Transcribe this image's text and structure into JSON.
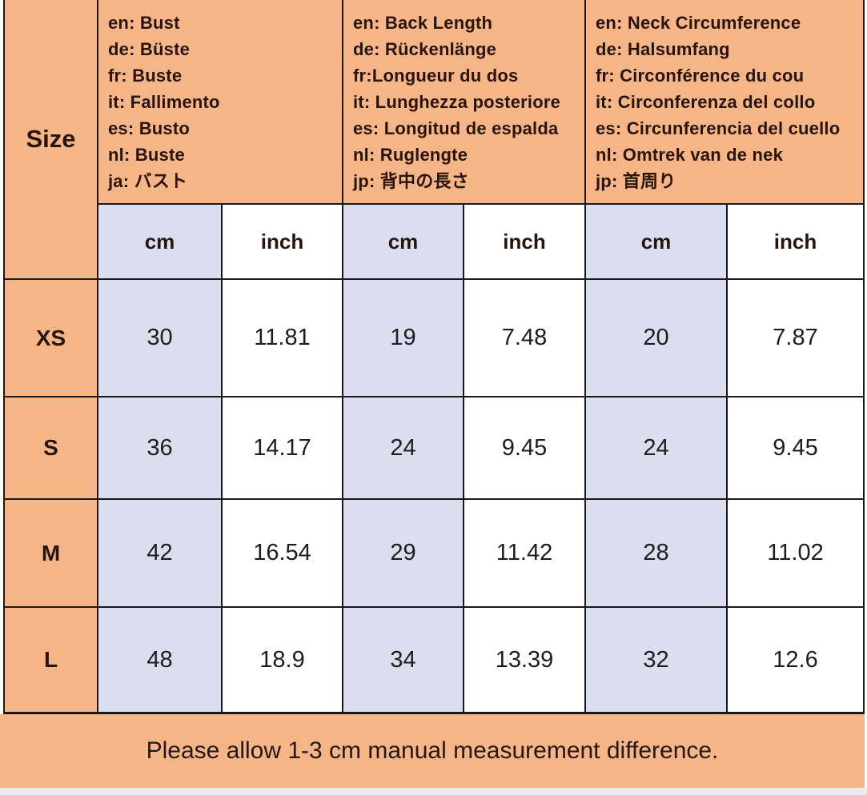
{
  "colors": {
    "orange": "#f6b587",
    "lavender": "#dadeef",
    "border": "#191919",
    "text-dark": "#27150d",
    "text-num": "#1d1d1d"
  },
  "chart_data": {
    "type": "table",
    "corner_header": "Size",
    "column_groups": [
      {
        "name": "Bust",
        "labels": [
          "en: Bust",
          "de: Büste",
          "fr: Buste",
          "it: Fallimento",
          "es: Busto",
          "nl: Buste",
          "ja: バスト"
        ]
      },
      {
        "name": "Back Length",
        "labels": [
          "en: Back Length",
          "de: Rückenlänge",
          "fr:Longueur du dos",
          "it: Lunghezza posteriore",
          "es: Longitud de espalda",
          "nl: Ruglengte",
          "jp: 背中の長さ"
        ]
      },
      {
        "name": "Neck Circumference",
        "labels": [
          "en: Neck Circumference",
          "de: Halsumfang",
          "fr: Circonférence du cou",
          "it: Circonferenza del collo",
          "es: Circunferencia del cuello",
          "nl: Omtrek van de nek",
          "jp: 首周り"
        ]
      }
    ],
    "unit_headers": [
      "cm",
      "inch",
      "cm",
      "inch",
      "cm",
      "inch"
    ],
    "rows": [
      {
        "size": "XS",
        "values": [
          "30",
          "11.81",
          "19",
          "7.48",
          "20",
          "7.87"
        ]
      },
      {
        "size": "S",
        "values": [
          "36",
          "14.17",
          "24",
          "9.45",
          "24",
          "9.45"
        ]
      },
      {
        "size": "M",
        "values": [
          "42",
          "16.54",
          "29",
          "11.42",
          "28",
          "11.02"
        ]
      },
      {
        "size": "L",
        "values": [
          "48",
          "18.9",
          "34",
          "13.39",
          "32",
          "12.6"
        ]
      }
    ],
    "note": "Please allow 1-3 cm manual measurement difference."
  }
}
